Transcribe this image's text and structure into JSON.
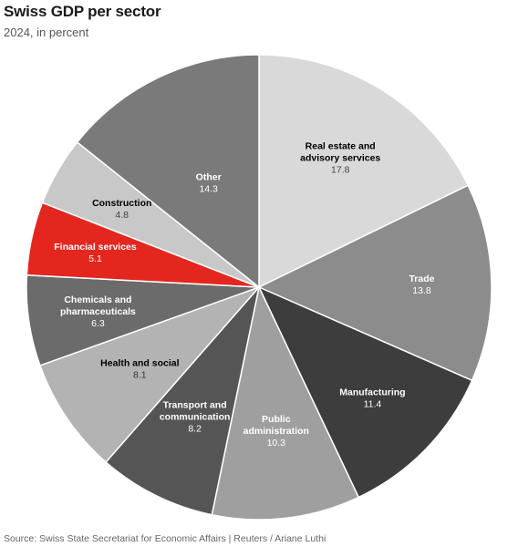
{
  "header": {
    "title": "Swiss GDP per sector",
    "subtitle": "2024, in percent"
  },
  "footer": {
    "source": "Source: Swiss State Secretariat for Economic Affairs | Reuters / Ariane Luthi"
  },
  "chart_data": {
    "type": "pie",
    "title": "Swiss GDP per sector",
    "subtitle": "2024, in percent",
    "start_angle_deg": 0,
    "direction": "clockwise",
    "slices": [
      {
        "label_lines": [
          "Real estate and",
          "advisory services"
        ],
        "value": 17.8,
        "display": "17.8",
        "color": "#d9d9d9",
        "text_color": "#000000",
        "value_color": "#444444"
      },
      {
        "label_lines": [
          "Trade"
        ],
        "value": 13.8,
        "display": "13.8",
        "color": "#8c8c8c",
        "text_color": "#ffffff",
        "value_color": "#ffffff"
      },
      {
        "label_lines": [
          "Manufacturing"
        ],
        "value": 11.4,
        "display": "11.4",
        "color": "#3d3d3d",
        "text_color": "#ffffff",
        "value_color": "#ffffff"
      },
      {
        "label_lines": [
          "Public",
          "administration"
        ],
        "value": 10.3,
        "display": "10.3",
        "color": "#9f9f9f",
        "text_color": "#ffffff",
        "value_color": "#ffffff"
      },
      {
        "label_lines": [
          "Transport and",
          "communication"
        ],
        "value": 8.2,
        "display": "8.2",
        "color": "#555555",
        "text_color": "#ffffff",
        "value_color": "#ffffff"
      },
      {
        "label_lines": [
          "Health and social"
        ],
        "value": 8.1,
        "display": "8.1",
        "color": "#b3b3b3",
        "text_color": "#000000",
        "value_color": "#333333"
      },
      {
        "label_lines": [
          "Chemicals and",
          "pharmaceuticals"
        ],
        "value": 6.3,
        "display": "6.3",
        "color": "#6b6b6b",
        "text_color": "#ffffff",
        "value_color": "#ffffff"
      },
      {
        "label_lines": [
          "Financial services"
        ],
        "value": 5.1,
        "display": "5.1",
        "color": "#e3271f",
        "text_color": "#ffffff",
        "value_color": "#ffffff"
      },
      {
        "label_lines": [
          "Construction"
        ],
        "value": 4.8,
        "display": "4.8",
        "color": "#c8c8c8",
        "text_color": "#000000",
        "value_color": "#444444"
      },
      {
        "label_lines": [
          "Other"
        ],
        "value": 14.3,
        "display": "14.3",
        "color": "#7a7a7a",
        "text_color": "#ffffff",
        "value_color": "#ffffff"
      }
    ]
  }
}
